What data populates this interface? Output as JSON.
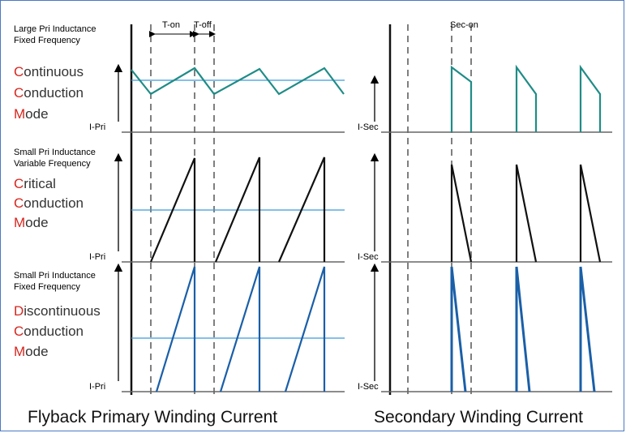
{
  "timing": {
    "t_on": "T-on",
    "t_off": "T-off",
    "sec_on": "Sec-on"
  },
  "axis_labels": {
    "primary": "I-Pri",
    "secondary": "I-Sec"
  },
  "rows": [
    {
      "title_line1": "Large Pri Inductance",
      "title_line2": "Fixed Frequency",
      "mode_words": [
        {
          "initial": "C",
          "rest": "ontinuous"
        },
        {
          "initial": "C",
          "rest": "onduction"
        },
        {
          "initial": "M",
          "rest": "ode"
        }
      ],
      "color": "#1f8c86"
    },
    {
      "title_line1": "Small Pri Inductance",
      "title_line2": "Variable Frequency",
      "mode_words": [
        {
          "initial": "C",
          "rest": "ritical"
        },
        {
          "initial": "C",
          "rest": "onduction"
        },
        {
          "initial": "M",
          "rest": "ode"
        }
      ],
      "color": "#111111"
    },
    {
      "title_line1": "Small Pri Inductance",
      "title_line2": "Fixed Frequency",
      "mode_words": [
        {
          "initial": "D",
          "rest": "iscontinuous"
        },
        {
          "initial": "C",
          "rest": "onduction"
        },
        {
          "initial": "M",
          "rest": "ode"
        }
      ],
      "color": "#1a5fa8"
    }
  ],
  "captions": {
    "primary": "Flyback Primary Winding Current",
    "secondary": "Secondary Winding Current"
  },
  "colors": {
    "border": "#4a78c2",
    "average_line": "#3a9ad9",
    "axis": "#111111",
    "baseline": "#666666",
    "highlight": "#d7261e"
  }
}
